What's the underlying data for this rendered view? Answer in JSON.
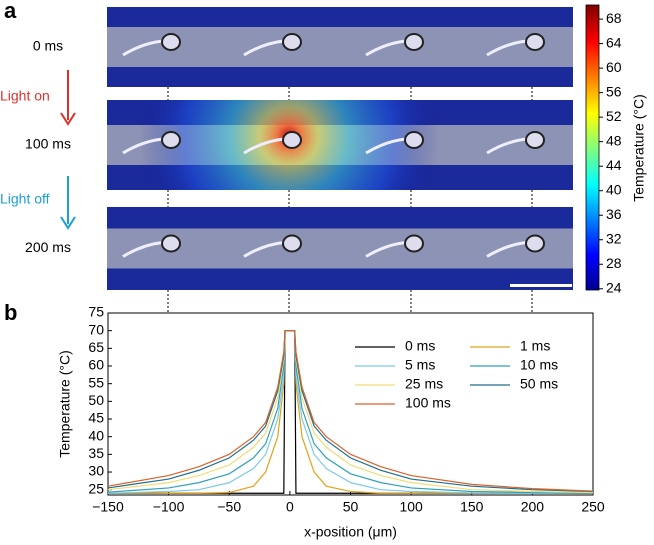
{
  "chart_data": [
    {
      "type": "image-panel",
      "panel": "a",
      "rows": [
        "0 ms",
        "100 ms",
        "200 ms"
      ],
      "annotations": [
        "Light on",
        "Light off"
      ],
      "colorbar": {
        "label": "Temperature (°C)",
        "lim": [
          23.8,
          70.3
        ],
        "ticks": [
          24,
          28,
          32,
          36,
          40,
          44,
          48,
          52,
          56,
          60,
          64,
          68
        ]
      }
    },
    {
      "type": "line",
      "panel": "b",
      "x_label": "x-position (μm)",
      "y_label": "Temperature (°C)",
      "x": [
        -150,
        -100,
        -75,
        -50,
        -30,
        -20,
        -10,
        -5,
        -4,
        4,
        5,
        10,
        20,
        30,
        50,
        75,
        100,
        150,
        200,
        250
      ],
      "xlim": [
        -150,
        250
      ],
      "xticks": [
        {
          "value": -150,
          "label": "−150"
        },
        {
          "value": -100,
          "label": "−100"
        },
        {
          "value": -50,
          "label": "−50"
        },
        0,
        50,
        100,
        150,
        200,
        250
      ],
      "ylim": [
        23.5,
        75
      ],
      "yticks": [
        25,
        30,
        35,
        40,
        45,
        50,
        55,
        60,
        65,
        70,
        75
      ],
      "series": [
        {
          "name": "0 ms",
          "color": "#000000",
          "values": [
            24,
            24,
            24,
            24,
            24,
            24,
            24,
            24,
            70,
            70,
            24,
            24,
            24,
            24,
            24,
            24,
            24,
            24,
            24,
            24
          ]
        },
        {
          "name": "1 ms",
          "color": "#e3a21a",
          "values": [
            24,
            24,
            24,
            24.2,
            26,
            30,
            40,
            55,
            70,
            70,
            55,
            40,
            30,
            26,
            24.5,
            24,
            24,
            24,
            24,
            24
          ]
        },
        {
          "name": "5 ms",
          "color": "#7ccbe8",
          "values": [
            24,
            24.5,
            25,
            27,
            31,
            35,
            45,
            57,
            70,
            70,
            57,
            45,
            35,
            31,
            27,
            25,
            24.5,
            24.1,
            24,
            24
          ]
        },
        {
          "name": "10 ms",
          "color": "#2f9fc0",
          "values": [
            24.3,
            25.5,
            27,
            29.5,
            34,
            38,
            48,
            60,
            70,
            70,
            60,
            48,
            38,
            34,
            29.5,
            27,
            25.5,
            24.5,
            24.2,
            24
          ]
        },
        {
          "name": "25 ms",
          "color": "#f2dc78",
          "values": [
            25,
            27,
            29,
            32,
            37,
            41,
            51,
            62,
            70,
            70,
            62,
            51,
            41,
            37,
            32,
            29,
            27,
            25,
            24.5,
            24.2
          ]
        },
        {
          "name": "50 ms",
          "color": "#1d6f8e",
          "values": [
            25.5,
            28,
            30.5,
            34,
            39,
            43,
            53,
            63,
            70,
            70,
            63,
            53,
            43,
            39,
            34,
            30.5,
            28,
            26,
            25,
            24.5
          ]
        },
        {
          "name": "100 ms",
          "color": "#d9622b",
          "values": [
            26,
            29,
            31.5,
            35,
            40,
            44,
            54,
            64,
            70,
            70,
            64,
            54,
            44,
            40,
            35,
            31.5,
            29,
            26.5,
            25.3,
            24.6
          ]
        }
      ]
    }
  ]
}
